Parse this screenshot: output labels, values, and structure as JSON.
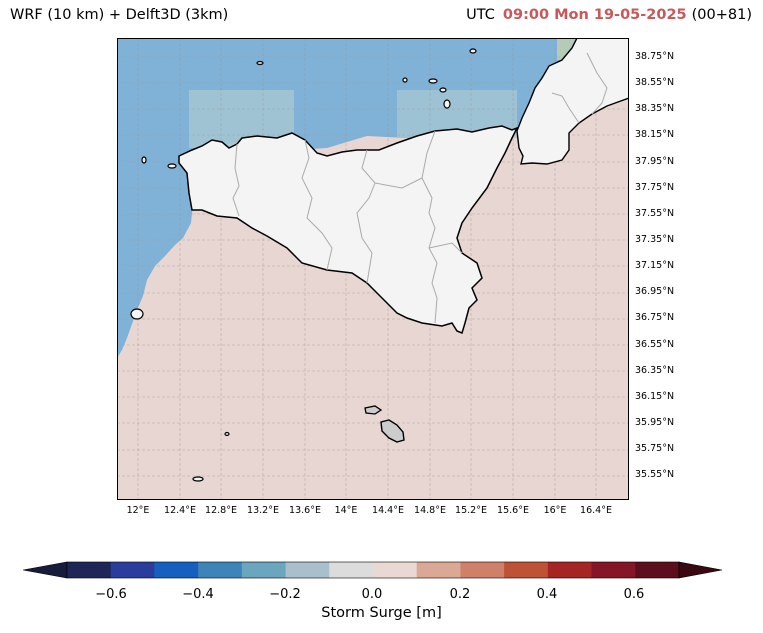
{
  "title": {
    "left": "WRF (10 km) + Delft3D (3km)",
    "utc_prefix": "UTC",
    "datetime": "09:00 Mon 19-05-2025",
    "run": "(00+81)"
  },
  "map": {
    "region": "Sicily / Malta",
    "lat_ticks": [
      "38.75°N",
      "38.55°N",
      "38.35°N",
      "38.15°N",
      "37.95°N",
      "37.75°N",
      "37.55°N",
      "37.35°N",
      "37.15°N",
      "36.95°N",
      "36.75°N",
      "36.55°N",
      "36.35°N",
      "36.15°N",
      "35.95°N",
      "35.75°N",
      "35.55°N"
    ],
    "lon_ticks": [
      "12°E",
      "12.4°E",
      "12.8°E",
      "13.2°E",
      "13.6°E",
      "14°E",
      "14.4°E",
      "14.8°E",
      "15.2°E",
      "15.6°E",
      "16°E",
      "16.4°E"
    ],
    "colors": {
      "sea_negative": "#7fb2d6",
      "sea_positive": "#e8d6d2",
      "land": "#f4f4f4",
      "coast": "#000000",
      "borders": "#aaaaaa"
    }
  },
  "colorbar": {
    "label": "Storm Surge [m]",
    "ticks": [
      "−0.6",
      "−0.4",
      "−0.2",
      "0.0",
      "0.2",
      "0.4",
      "0.6"
    ],
    "levels": [
      -0.7,
      -0.6,
      -0.5,
      -0.4,
      -0.3,
      -0.2,
      -0.1,
      0.0,
      0.1,
      0.2,
      0.3,
      0.4,
      0.5,
      0.6,
      0.7
    ],
    "colors": [
      "#1f2657",
      "#2a3d9c",
      "#1560be",
      "#3d85b8",
      "#6aa6be",
      "#a9c0cc",
      "#dcdcdc",
      "#ead8d3",
      "#dba896",
      "#cf8068",
      "#bd5236",
      "#a52424",
      "#851628",
      "#5c0e1c"
    ],
    "under_color": "#181c3b",
    "over_color": "#3a0812"
  }
}
